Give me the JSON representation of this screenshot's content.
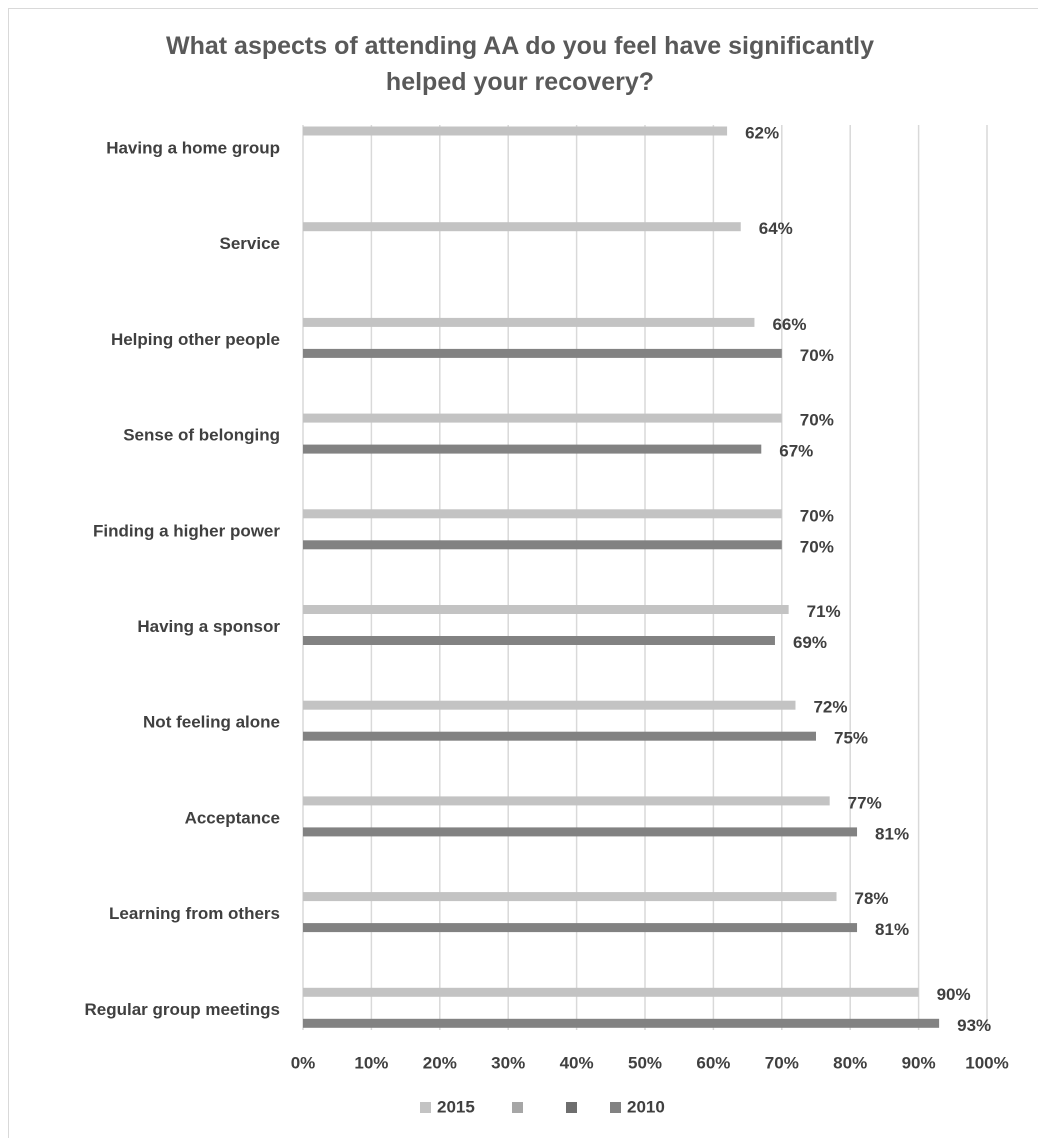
{
  "chart_data": {
    "type": "hbar",
    "title": "What aspects of attending AA do you feel have significantly helped your recovery?",
    "categories": [
      "Having a home group",
      "Service",
      "Helping other people",
      "Sense of belonging",
      "Finding a higher power",
      "Having a sponsor",
      "Not feeling alone",
      "Acceptance",
      "Learning from others",
      "Regular group meetings"
    ],
    "series": [
      {
        "name": "2015",
        "color": "#c3c3c3",
        "values": [
          62,
          64,
          66,
          70,
          70,
          71,
          72,
          77,
          78,
          90
        ],
        "value_labels": [
          "62%",
          "64%",
          "66%",
          "70%",
          "70%",
          "71%",
          "72%",
          "77%",
          "78%",
          "90%"
        ]
      },
      {
        "name": "2010",
        "color": "#828282",
        "values": [
          null,
          null,
          70,
          67,
          70,
          69,
          75,
          81,
          81,
          93
        ],
        "value_labels": [
          null,
          null,
          "70%",
          "67%",
          "70%",
          "69%",
          "75%",
          "81%",
          "81%",
          "93%"
        ]
      }
    ],
    "xlim": [
      0,
      100
    ],
    "xticks": [
      {
        "value": 0,
        "label": "0%"
      },
      {
        "value": 10,
        "label": "10%"
      },
      {
        "value": 20,
        "label": "20%"
      },
      {
        "value": 30,
        "label": "30%"
      },
      {
        "value": 40,
        "label": "40%"
      },
      {
        "value": 50,
        "label": "50%"
      },
      {
        "value": 60,
        "label": "60%"
      },
      {
        "value": 70,
        "label": "70%"
      },
      {
        "value": 80,
        "label": "80%"
      },
      {
        "value": 90,
        "label": "90%"
      },
      {
        "value": 100,
        "label": "100%"
      }
    ],
    "grid": true,
    "legend": "bottom"
  }
}
